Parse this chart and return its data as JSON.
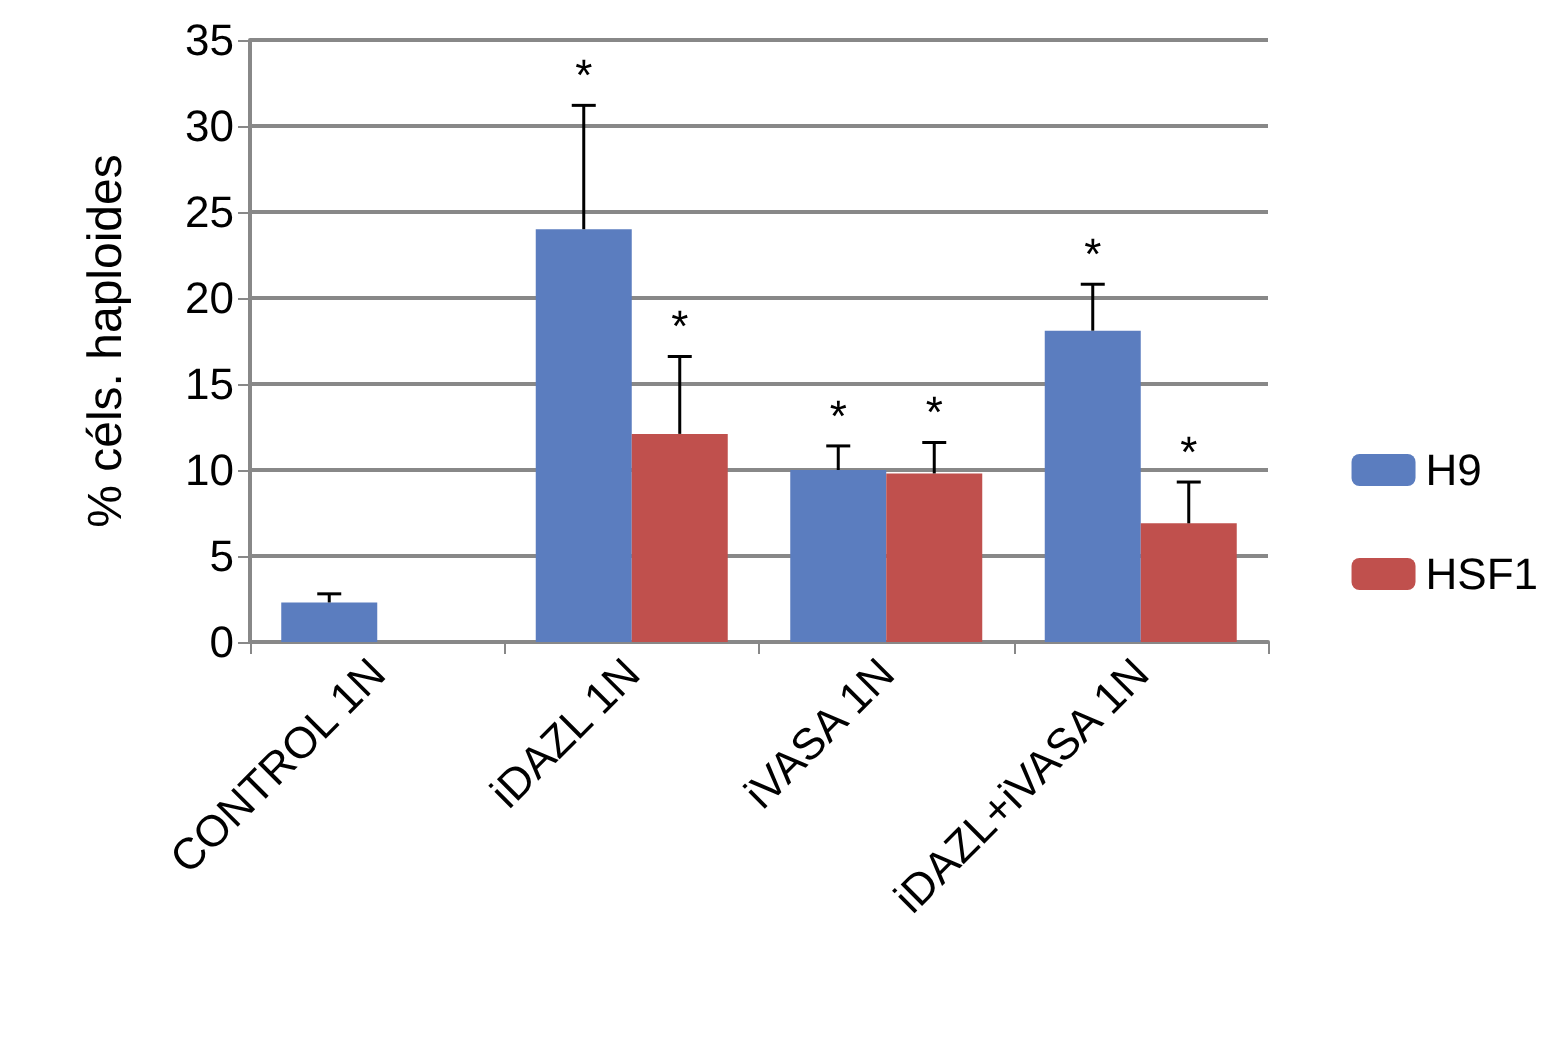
{
  "chart_data": {
    "type": "bar",
    "ylabel": "% céls. haploides",
    "categories": [
      "CONTROL 1N",
      "iDAZL 1N",
      "iVASA 1N",
      "iDAZL+iVASA 1N"
    ],
    "series": [
      {
        "name": "H9",
        "color": "#5b7dbf",
        "values": [
          2.3,
          24,
          10,
          18.1
        ],
        "errors": [
          [
            2.3,
            2.8
          ],
          [
            24,
            31.2
          ],
          [
            10,
            11.4
          ],
          [
            18.1,
            20.8
          ]
        ]
      },
      {
        "name": "HSF1",
        "color": "#c0504d",
        "values": [
          null,
          12.1,
          9.8,
          6.9
        ],
        "errors": [
          null,
          [
            12.1,
            16.6
          ],
          [
            9.8,
            11.6
          ],
          [
            6.9,
            9.3
          ]
        ]
      }
    ],
    "annotations": [
      "*",
      "*",
      "*",
      "*",
      "*",
      "*"
    ],
    "ylim": [
      0,
      35
    ],
    "yticks": [
      0,
      5,
      10,
      15,
      20,
      25,
      30,
      35
    ],
    "grid": "y",
    "legend": "right"
  }
}
